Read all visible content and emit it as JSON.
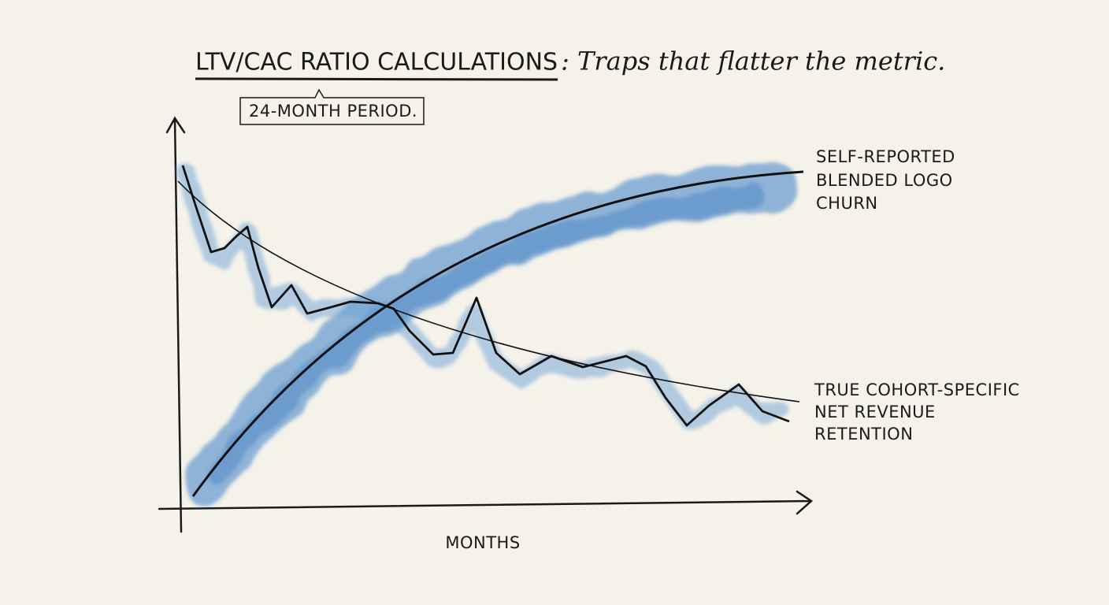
{
  "title": {
    "emphasis": "LTV/CAC RATIO CALCULATIONS",
    "rest": ": Traps that flatter the metric."
  },
  "annotation": "24-MONTH PERIOD.",
  "x_axis_label": "MONTHS",
  "labels": [
    {
      "lines": [
        "SELF-REPORTED",
        "BLENDED LOGO",
        "CHURN"
      ]
    },
    {
      "lines": [
        "TRUE COHORT-SPECIFIC",
        "NET REVENUE",
        "RETENTION"
      ]
    }
  ]
}
